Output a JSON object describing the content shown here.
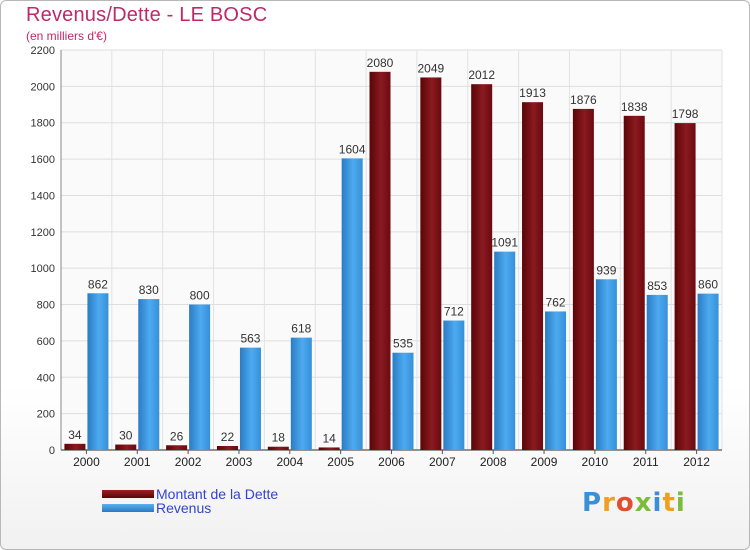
{
  "title": "Revenus/Dette - LE BOSC",
  "subtitle": "(en milliers d'€)",
  "legend": {
    "debt_label": "Montant de la Dette",
    "revenue_label": "Revenus"
  },
  "logo": {
    "text": "Proxiti",
    "letters": [
      "P",
      "r",
      "o",
      "x",
      "i",
      "t",
      "i"
    ]
  },
  "colors": {
    "debt": "#7a0e14",
    "revenue": "#3d9ee6",
    "title": "#c0286a",
    "legend_text": "#3344cc"
  },
  "chart_data": {
    "type": "bar",
    "title": "Revenus/Dette - LE BOSC",
    "subtitle": "(en milliers d'€)",
    "categories": [
      "2000",
      "2001",
      "2002",
      "2003",
      "2004",
      "2005",
      "2006",
      "2007",
      "2008",
      "2009",
      "2010",
      "2011",
      "2012"
    ],
    "series": [
      {
        "name": "Montant de la Dette",
        "values": [
          34,
          30,
          26,
          22,
          18,
          14,
          2080,
          2049,
          2012,
          1913,
          1876,
          1838,
          1798
        ]
      },
      {
        "name": "Revenus",
        "values": [
          862,
          830,
          800,
          563,
          618,
          1604,
          535,
          712,
          1091,
          762,
          939,
          853,
          860
        ]
      }
    ],
    "ylim": [
      0,
      2200
    ],
    "yticks": [
      0,
      200,
      400,
      600,
      800,
      1000,
      1200,
      1400,
      1600,
      1800,
      2000,
      2200
    ],
    "grid": true,
    "legend_position": "bottom-left"
  }
}
